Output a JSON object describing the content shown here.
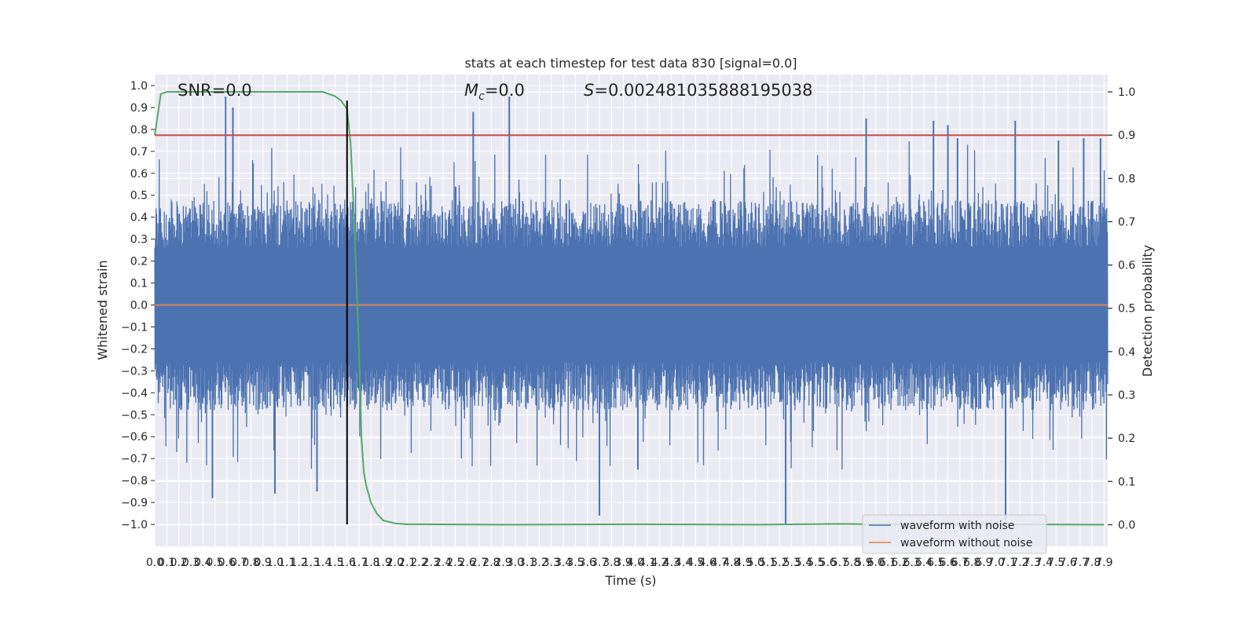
{
  "chart_data": {
    "type": "line",
    "title": "stats at each timestep for test data 830 [signal=0.0]",
    "xlabel": "Time (s)",
    "ylabel": "Whitened strain",
    "y2label": "Detection probability",
    "xlim": [
      0.0,
      7.93
    ],
    "ylim": [
      -1.1,
      1.05
    ],
    "y2lim": [
      -0.05,
      1.04
    ],
    "x_ticks": [
      0.0,
      0.1,
      0.2,
      0.3,
      0.4,
      0.5,
      0.6,
      0.7,
      0.8,
      0.9,
      1.0,
      1.1,
      1.2,
      1.3,
      1.4,
      1.5,
      1.6,
      1.7,
      1.8,
      1.9,
      2.0,
      2.1,
      2.2,
      2.3,
      2.4,
      2.5,
      2.6,
      2.7,
      2.8,
      2.9,
      3.0,
      3.1,
      3.2,
      3.3,
      3.4,
      3.5,
      3.6,
      3.7,
      3.8,
      3.9,
      4.0,
      4.1,
      4.2,
      4.3,
      4.4,
      4.5,
      4.6,
      4.7,
      4.8,
      4.9,
      5.0,
      5.1,
      5.2,
      5.3,
      5.4,
      5.5,
      5.6,
      5.7,
      5.8,
      5.9,
      6.0,
      6.1,
      6.2,
      6.3,
      6.4,
      6.5,
      6.6,
      6.7,
      6.8,
      6.9,
      7.0,
      7.1,
      7.2,
      7.3,
      7.4,
      7.5,
      7.6,
      7.7,
      7.8,
      7.9
    ],
    "x_tick_labels": [
      "0.0",
      "0.1",
      "0.2",
      "0.3",
      "0.4",
      "0.5",
      "0.6",
      "0.7",
      "0.8",
      "0.9",
      "1.0",
      "1.1",
      "1.2",
      "1.3",
      "1.4",
      "1.5",
      "1.6",
      "1.7",
      "1.8",
      "1.9",
      "2.0",
      "2.1",
      "2.2",
      "2.3",
      "2.4",
      "2.5",
      "2.6",
      "2.7",
      "2.8",
      "2.9",
      "3.0",
      "3.1",
      "3.2",
      "3.3",
      "3.4",
      "3.5",
      "3.6",
      "3.7",
      "3.8",
      "3.9",
      "4.0",
      "4.1",
      "4.2",
      "4.3",
      "4.4",
      "4.5",
      "4.6",
      "4.7",
      "4.8",
      "4.9",
      "5.0",
      "5.1",
      "5.2",
      "5.3",
      "5.4",
      "5.5",
      "5.6",
      "5.7",
      "5.8",
      "5.9",
      "6.0",
      "6.1",
      "6.2",
      "6.3",
      "6.4",
      "6.5",
      "6.6",
      "6.7",
      "6.8",
      "6.9",
      "7.0",
      "7.1",
      "7.2",
      "7.3",
      "7.4",
      "7.5",
      "7.6",
      "7.7",
      "7.8",
      "7.9"
    ],
    "y_ticks": [
      -1.0,
      -0.9,
      -0.8,
      -0.7,
      -0.6,
      -0.5,
      -0.4,
      -0.3,
      -0.2,
      -0.1,
      0.0,
      0.1,
      0.2,
      0.3,
      0.4,
      0.5,
      0.6,
      0.7,
      0.8,
      0.9,
      1.0
    ],
    "y_tick_labels": [
      "−1.0",
      "−0.9",
      "−0.8",
      "−0.7",
      "−0.6",
      "−0.5",
      "−0.4",
      "−0.3",
      "−0.2",
      "−0.1",
      "0.0",
      "0.1",
      "0.2",
      "0.3",
      "0.4",
      "0.5",
      "0.6",
      "0.7",
      "0.8",
      "0.9",
      "1.0"
    ],
    "y2_ticks": [
      0.0,
      0.1,
      0.2,
      0.3,
      0.4,
      0.5,
      0.6,
      0.7,
      0.8,
      0.9,
      1.0
    ],
    "y2_tick_labels": [
      "0.0",
      "0.1",
      "0.2",
      "0.3",
      "0.4",
      "0.5",
      "0.6",
      "0.7",
      "0.8",
      "0.9",
      "1.0"
    ],
    "series": [
      {
        "name": "waveform with noise",
        "axis": "left",
        "color": "#4c72b0",
        "description_values": "dense noise, |strain| mostly within 0.4, spikes up to about 0.95",
        "spikes": [
          [
            0.59,
            0.95
          ],
          [
            0.48,
            -0.88
          ],
          [
            0.65,
            0.9
          ],
          [
            1.0,
            -0.86
          ],
          [
            1.35,
            -0.85
          ],
          [
            2.65,
            0.88
          ],
          [
            2.95,
            0.95
          ],
          [
            3.7,
            -0.96
          ],
          [
            4.02,
            -0.75
          ],
          [
            5.25,
            -1.0
          ],
          [
            5.92,
            0.85
          ],
          [
            6.48,
            0.84
          ],
          [
            6.6,
            0.82
          ],
          [
            6.68,
            0.76
          ],
          [
            7.08,
            -0.98
          ],
          [
            7.16,
            0.84
          ],
          [
            7.52,
            0.75
          ],
          [
            7.73,
            0.76
          ],
          [
            7.87,
            0.76
          ]
        ]
      },
      {
        "name": "waveform without noise",
        "axis": "left",
        "color": "#dd8452",
        "x": [
          0.0,
          7.93
        ],
        "y": [
          0.0,
          0.0
        ]
      },
      {
        "axis": "right",
        "color": "#55a868",
        "x": [
          0.0,
          0.05,
          0.1,
          0.15,
          0.2,
          0.5,
          1.0,
          1.4,
          1.45,
          1.5,
          1.55,
          1.6,
          1.63,
          1.66,
          1.7,
          1.72,
          1.74,
          1.76,
          1.8,
          1.85,
          1.9,
          2.0,
          2.1,
          2.2,
          3.0,
          4.0,
          5.0,
          5.7,
          6.0,
          7.0,
          7.9
        ],
        "y": [
          0.9,
          0.995,
          1.0,
          1.0,
          1.0,
          1.0,
          1.0,
          1.0,
          0.995,
          0.99,
          0.98,
          0.96,
          0.88,
          0.7,
          0.4,
          0.2,
          0.12,
          0.09,
          0.05,
          0.025,
          0.01,
          0.003,
          0.001,
          0.001,
          0.0,
          0.001,
          0.0,
          0.002,
          0.001,
          0.001,
          0.0
        ]
      },
      {
        "axis": "right",
        "color": "#c44e52",
        "x": [
          0.0,
          7.93
        ],
        "y": [
          0.9,
          0.9
        ]
      }
    ],
    "vertical_line": {
      "x": 1.6,
      "y_from": -1.0,
      "y_to": 0.98,
      "color": "#000000"
    },
    "annotations": {
      "snr": "SNR=0.0",
      "mc_label": "M",
      "mc_sub": "c",
      "mc_value": "=0.0",
      "s_label": "S",
      "s_value": "=0.002481035888195038"
    },
    "legend": {
      "placement": "lower-right",
      "entries": [
        "waveform with noise",
        "waveform without noise"
      ]
    },
    "grid": true,
    "background": "#eaeaf2"
  }
}
